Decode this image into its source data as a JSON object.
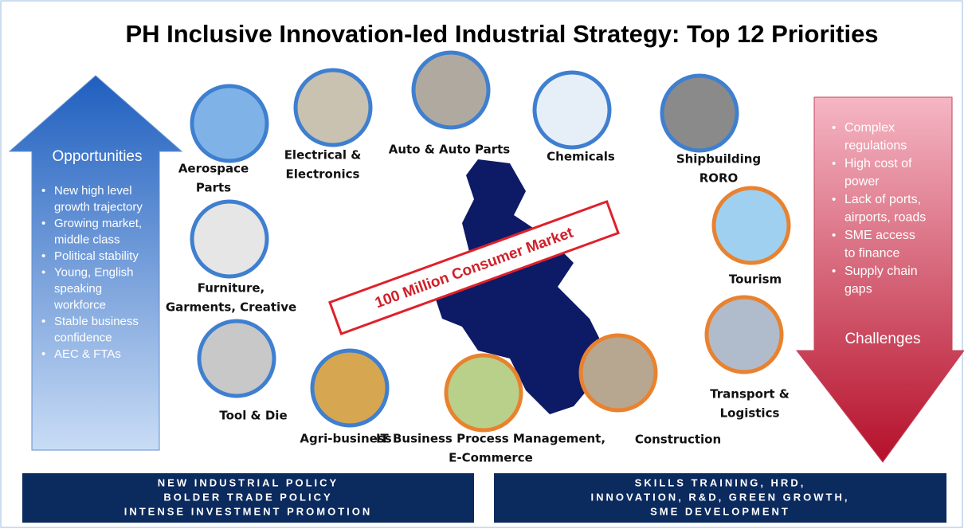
{
  "title": "PH Inclusive Innovation-led Industrial Strategy: Top 12 Priorities",
  "opportunities": {
    "heading": "Opportunities",
    "items": [
      [
        "New high level",
        "growth trajectory"
      ],
      [
        "Growing market,",
        "middle class"
      ],
      [
        "Political stability"
      ],
      [
        "Young, English",
        "speaking",
        "workforce"
      ],
      [
        "Stable business",
        "confidence"
      ],
      [
        "AEC & FTAs"
      ]
    ]
  },
  "challenges": {
    "heading": "Challenges",
    "items": [
      [
        "Complex",
        "regulations"
      ],
      [
        "High cost of",
        "power"
      ],
      [
        "Lack of ports,",
        "airports, roads"
      ],
      [
        "SME access",
        "to finance"
      ],
      [
        "Supply chain",
        "gaps"
      ]
    ]
  },
  "banner": "100 Million Consumer Market",
  "priorities": [
    {
      "lines": [
        "Aerospace",
        "Parts"
      ]
    },
    {
      "lines": [
        "Electrical &",
        "Electronics"
      ]
    },
    {
      "lines": [
        "Auto & Auto Parts"
      ]
    },
    {
      "lines": [
        "Chemicals"
      ]
    },
    {
      "lines": [
        "Shipbuilding",
        "RORO"
      ]
    },
    {
      "lines": [
        "Furniture,",
        "Garments, Creative"
      ]
    },
    {
      "lines": [
        "Tourism"
      ]
    },
    {
      "lines": [
        "Tool & Die"
      ]
    },
    {
      "lines": [
        "Agri-business"
      ]
    },
    {
      "lines": [
        "IT Business Process Management,",
        "E-Commerce"
      ]
    },
    {
      "lines": [
        "Construction"
      ]
    },
    {
      "lines": [
        "Transport &",
        "Logistics"
      ]
    }
  ],
  "footer": [
    {
      "lines": [
        "NEW INDUSTRIAL POLICY",
        "BOLDER TRADE POLICY",
        "INTENSE INVESTMENT PROMOTION"
      ]
    },
    {
      "lines": [
        "SKILLS TRAINING, HRD,",
        "INNOVATION, R&D, GREEN GROWTH,",
        "SME DEVELOPMENT"
      ]
    }
  ]
}
